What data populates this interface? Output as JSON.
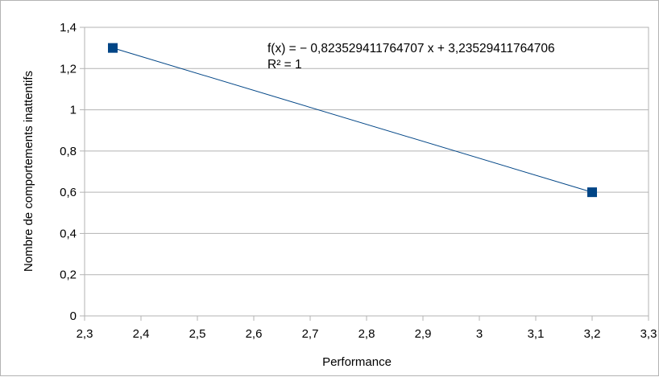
{
  "chart_data": {
    "type": "scatter",
    "title": "",
    "xlabel": "Performance",
    "ylabel": "Nombre de comportements inattentifs",
    "xlim": [
      2.3,
      3.3
    ],
    "ylim": [
      0,
      1.4
    ],
    "x_ticks": [
      "2,3",
      "2,4",
      "2,5",
      "2,6",
      "2,7",
      "2,8",
      "2,9",
      "3",
      "3,1",
      "3,2",
      "3,3"
    ],
    "y_ticks": [
      "0",
      "0,2",
      "0,4",
      "0,6",
      "0,8",
      "1",
      "1,2",
      "1,4"
    ],
    "grid": "horizontal",
    "legend": "none",
    "series": [
      {
        "x": [
          2.35,
          3.2
        ],
        "y": [
          1.3,
          0.6
        ],
        "color": "#004586",
        "marker": "square"
      }
    ],
    "trendline": {
      "type": "linear",
      "color": "#004586",
      "slope": -0.823529411764707,
      "intercept": 3.23529411764706
    },
    "annotations": {
      "equation": "f(x) = − 0,823529411764707 x + 3,23529411764706",
      "r_squared": "R² = 1"
    }
  }
}
